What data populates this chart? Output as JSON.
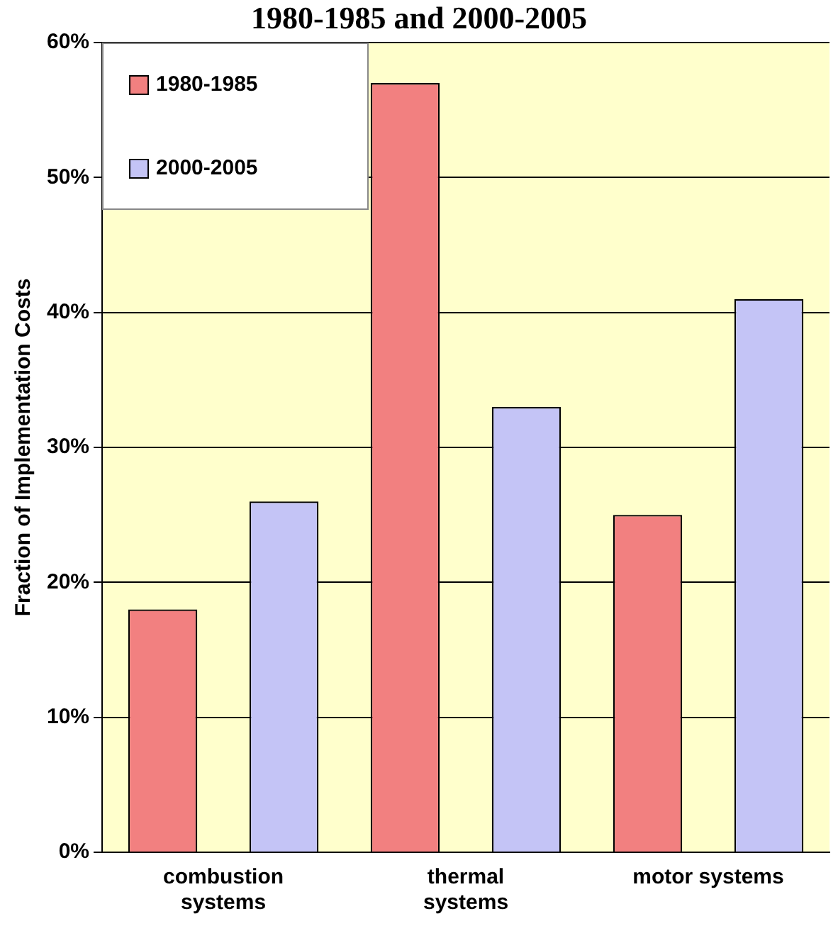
{
  "chart_data": {
    "type": "bar",
    "title": "1980-1985 and 2000-2005",
    "ylabel": "Fraction of Implementation Costs",
    "categories": [
      "combustion systems",
      "thermal systems",
      "motor systems"
    ],
    "series": [
      {
        "name": "1980-1985",
        "color": "#f28080",
        "values": [
          18,
          57,
          25
        ]
      },
      {
        "name": "2000-2005",
        "color": "#c4c4f6",
        "values": [
          26,
          33,
          41
        ]
      }
    ],
    "ylim": [
      0,
      60
    ],
    "yticks": [
      {
        "value": 0,
        "label": "0%"
      },
      {
        "value": 10,
        "label": "10%"
      },
      {
        "value": 20,
        "label": "20%"
      },
      {
        "value": 30,
        "label": "30%"
      },
      {
        "value": 40,
        "label": "40%"
      },
      {
        "value": 50,
        "label": "50%"
      },
      {
        "value": 60,
        "label": "60%"
      }
    ],
    "grid": "y",
    "legend": "top left"
  }
}
